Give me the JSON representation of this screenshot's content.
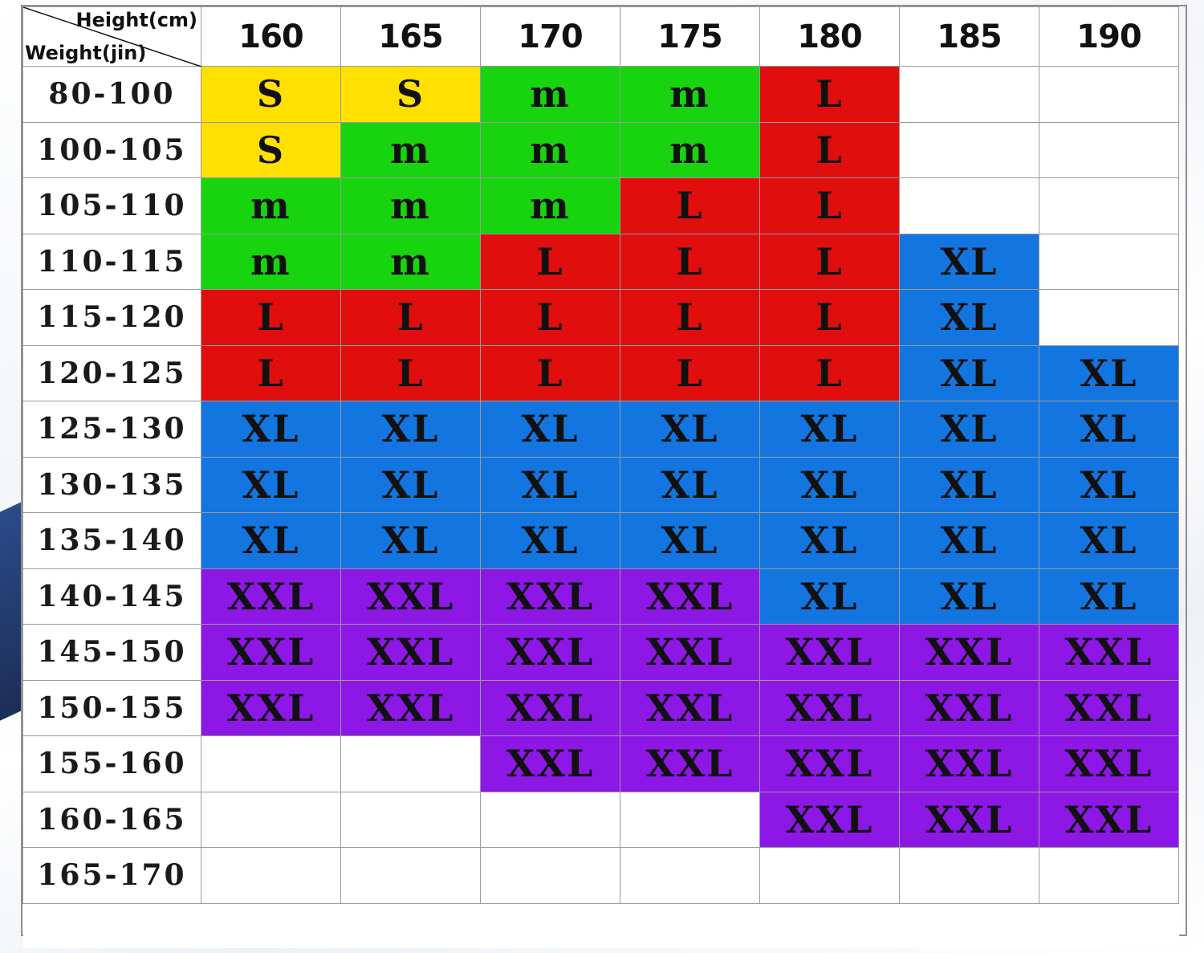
{
  "header": {
    "height_label": "Height(cm)",
    "weight_label": "Weight(jin)"
  },
  "heights": [
    "160",
    "165",
    "170",
    "175",
    "180",
    "185",
    "190"
  ],
  "colors": {
    "S": "#ffe000",
    "m": "#17d40e",
    "L": "#e10e0e",
    "XL": "#1376e0",
    "XXL": "#8d18e6",
    "empty": "#ffffff"
  },
  "rows": [
    {
      "weight": "80-100",
      "sizes": [
        "S",
        "S",
        "m",
        "m",
        "L",
        "",
        ""
      ]
    },
    {
      "weight": "100-105",
      "sizes": [
        "S",
        "m",
        "m",
        "m",
        "L",
        "",
        ""
      ]
    },
    {
      "weight": "105-110",
      "sizes": [
        "m",
        "m",
        "m",
        "L",
        "L",
        "",
        ""
      ]
    },
    {
      "weight": "110-115",
      "sizes": [
        "m",
        "m",
        "L",
        "L",
        "L",
        "XL",
        ""
      ]
    },
    {
      "weight": "115-120",
      "sizes": [
        "L",
        "L",
        "L",
        "L",
        "L",
        "XL",
        ""
      ]
    },
    {
      "weight": "120-125",
      "sizes": [
        "L",
        "L",
        "L",
        "L",
        "L",
        "XL",
        "XL"
      ]
    },
    {
      "weight": "125-130",
      "sizes": [
        "XL",
        "XL",
        "XL",
        "XL",
        "XL",
        "XL",
        "XL"
      ]
    },
    {
      "weight": "130-135",
      "sizes": [
        "XL",
        "XL",
        "XL",
        "XL",
        "XL",
        "XL",
        "XL"
      ]
    },
    {
      "weight": "135-140",
      "sizes": [
        "XL",
        "XL",
        "XL",
        "XL",
        "XL",
        "XL",
        "XL"
      ]
    },
    {
      "weight": "140-145",
      "sizes": [
        "XXL",
        "XXL",
        "XXL",
        "XXL",
        "XL",
        "XL",
        "XL"
      ]
    },
    {
      "weight": "145-150",
      "sizes": [
        "XXL",
        "XXL",
        "XXL",
        "XXL",
        "XXL",
        "XXL",
        "XXL"
      ]
    },
    {
      "weight": "150-155",
      "sizes": [
        "XXL",
        "XXL",
        "XXL",
        "XXL",
        "XXL",
        "XXL",
        "XXL"
      ]
    },
    {
      "weight": "155-160",
      "sizes": [
        "",
        "",
        "XXL",
        "XXL",
        "XXL",
        "XXL",
        "XXL"
      ]
    },
    {
      "weight": "160-165",
      "sizes": [
        "",
        "",
        "",
        "",
        "XXL",
        "XXL",
        "XXL"
      ]
    },
    {
      "weight": "165-170",
      "sizes": [
        "",
        "",
        "",
        "",
        "",
        "",
        ""
      ]
    }
  ]
}
